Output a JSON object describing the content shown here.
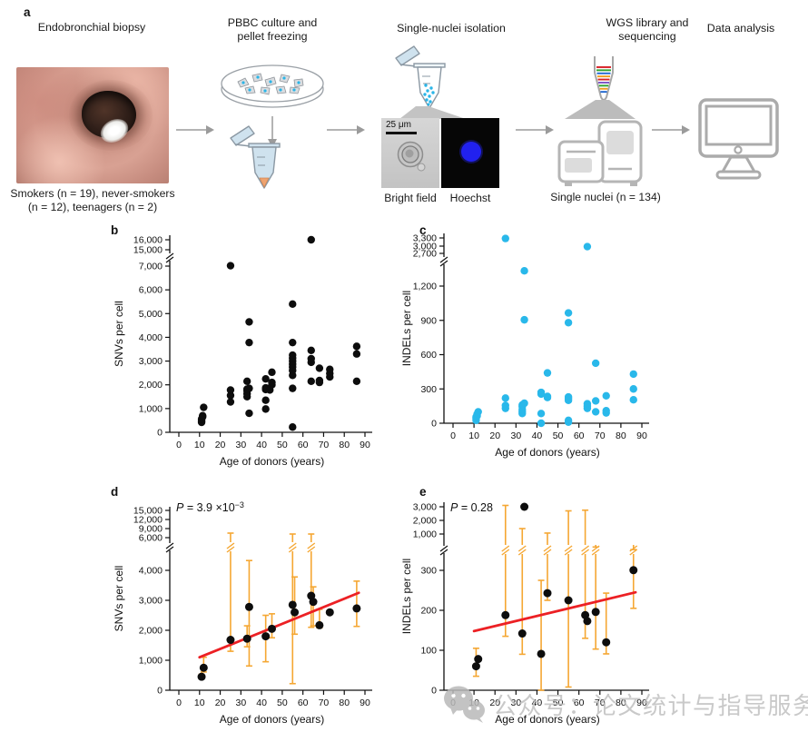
{
  "panel_a": {
    "label": "a",
    "biopsy": {
      "title": "Endobronchial biopsy",
      "caption_line1": "Smokers (n = 19), never-smokers",
      "caption_line2": "(n = 12), teenagers (n = 2)"
    },
    "culture": {
      "title_line1": "PBBC culture and",
      "title_line2": "pellet freezing"
    },
    "nuclei": {
      "title": "Single-nuclei isolation",
      "scale_bar": "25 μm",
      "brightfield_label": "Bright field",
      "hoechst_label": "Hoechst"
    },
    "wgs": {
      "title_line1": "WGS library and",
      "title_line2": "sequencing",
      "caption": "Single nuclei (n = 134)"
    },
    "analysis": {
      "title": "Data analysis"
    }
  },
  "colors": {
    "point_black": "#0d0d0d",
    "point_cyan": "#29B8EA",
    "errorbar_orange": "#F5A733",
    "fit_red": "#EC2024",
    "icon_gray": "#B5B5B5",
    "arrow_gray": "#9B9B9B",
    "tube_blue": "#CFE2EE",
    "nucleus_blue": "#2121EF",
    "watermark_gray": "#C0C0C0"
  },
  "chart_data": [
    {
      "id": "b",
      "panel_label": "b",
      "type": "scatter",
      "xlabel": "Age of donors (years)",
      "ylabel": "SNVs per cell",
      "x_ticks": [
        0,
        10,
        20,
        30,
        40,
        50,
        60,
        70,
        80,
        90
      ],
      "y_ticks_lower": [
        0,
        1000,
        2000,
        3000,
        4000,
        5000,
        6000,
        7000
      ],
      "y_ticks_upper": [
        15000,
        16000
      ],
      "axis_break": true,
      "point_color": "#0d0d0d",
      "points": [
        [
          11,
          420
        ],
        [
          11,
          480
        ],
        [
          11,
          560
        ],
        [
          11.5,
          650
        ],
        [
          11.5,
          700
        ],
        [
          12,
          1050
        ],
        [
          25,
          1280
        ],
        [
          25,
          1550
        ],
        [
          25,
          1780
        ],
        [
          25,
          7200
        ],
        [
          33,
          1500
        ],
        [
          33,
          1620
        ],
        [
          33,
          1750
        ],
        [
          33,
          1820
        ],
        [
          33,
          2150
        ],
        [
          34,
          800
        ],
        [
          34,
          1850
        ],
        [
          34,
          3780
        ],
        [
          34,
          4650
        ],
        [
          42,
          980
        ],
        [
          42,
          1350
        ],
        [
          42,
          1800
        ],
        [
          42,
          1870
        ],
        [
          42,
          2250
        ],
        [
          44,
          1780
        ],
        [
          45,
          2000
        ],
        [
          45,
          2100
        ],
        [
          45,
          2530
        ],
        [
          55,
          220
        ],
        [
          55,
          1850
        ],
        [
          55,
          2400
        ],
        [
          55,
          2600
        ],
        [
          55,
          2750
        ],
        [
          55,
          2870
        ],
        [
          55,
          3000
        ],
        [
          55,
          3120
        ],
        [
          55,
          3250
        ],
        [
          55,
          3780
        ],
        [
          55,
          5400
        ],
        [
          64,
          2150
        ],
        [
          64,
          2950
        ],
        [
          64,
          3100
        ],
        [
          64,
          3450
        ],
        [
          64,
          16000
        ],
        [
          68,
          2100
        ],
        [
          68,
          2180
        ],
        [
          68,
          2700
        ],
        [
          73,
          2330
        ],
        [
          73,
          2480
        ],
        [
          73,
          2650
        ],
        [
          86,
          2150
        ],
        [
          86,
          3300
        ],
        [
          86,
          3620
        ]
      ]
    },
    {
      "id": "c",
      "panel_label": "c",
      "type": "scatter",
      "xlabel": "Age of donors (years)",
      "ylabel": "INDELs per cell",
      "x_ticks": [
        0,
        10,
        20,
        30,
        40,
        50,
        60,
        70,
        80,
        90
      ],
      "y_ticks_lower": [
        0,
        300,
        600,
        900,
        1200
      ],
      "y_ticks_upper": [
        2700,
        3000,
        3300
      ],
      "axis_break": true,
      "point_color": "#29B8EA",
      "points": [
        [
          11,
          25
        ],
        [
          11,
          40
        ],
        [
          11,
          55
        ],
        [
          11.5,
          65
        ],
        [
          11.5,
          80
        ],
        [
          12,
          100
        ],
        [
          25,
          130
        ],
        [
          25,
          155
        ],
        [
          25,
          220
        ],
        [
          25,
          3280
        ],
        [
          33,
          85
        ],
        [
          33,
          100
        ],
        [
          33,
          120
        ],
        [
          33,
          145
        ],
        [
          33,
          160
        ],
        [
          34,
          175
        ],
        [
          34,
          905
        ],
        [
          34,
          1900
        ],
        [
          42,
          0
        ],
        [
          42,
          85
        ],
        [
          42,
          255
        ],
        [
          42,
          270
        ],
        [
          45,
          225
        ],
        [
          45,
          235
        ],
        [
          45,
          440
        ],
        [
          55,
          10
        ],
        [
          55,
          25
        ],
        [
          55,
          200
        ],
        [
          55,
          215
        ],
        [
          55,
          230
        ],
        [
          55,
          880
        ],
        [
          55,
          965
        ],
        [
          64,
          130
        ],
        [
          64,
          150
        ],
        [
          64,
          170
        ],
        [
          64,
          2980
        ],
        [
          68,
          100
        ],
        [
          68,
          195
        ],
        [
          68,
          525
        ],
        [
          73,
          90
        ],
        [
          73,
          110
        ],
        [
          73,
          240
        ],
        [
          86,
          205
        ],
        [
          86,
          300
        ],
        [
          86,
          430
        ]
      ]
    },
    {
      "id": "d",
      "panel_label": "d",
      "type": "scatter-errorbar",
      "xlabel": "Age of donors (years)",
      "ylabel": "SNVs per cell",
      "p_value": {
        "italic": "P",
        "rest": " = 3.9 ×10",
        "sup": "−3"
      },
      "x_ticks": [
        0,
        10,
        20,
        30,
        40,
        50,
        60,
        70,
        80,
        90
      ],
      "y_ticks_lower": [
        0,
        1000,
        2000,
        3000,
        4000
      ],
      "y_ticks_upper": [
        6000,
        9000,
        12000,
        15000
      ],
      "axis_break": true,
      "point_color": "#0d0d0d",
      "errorbar_color": "#F5A733",
      "fit_line": {
        "x1": 10,
        "y1": 1100,
        "x2": 87,
        "y2": 3250,
        "color": "#EC2024"
      },
      "points": [
        {
          "x": 11,
          "y": 450,
          "lo": 390,
          "hi": 530
        },
        {
          "x": 12,
          "y": 750,
          "lo": 610,
          "hi": 1100
        },
        {
          "x": 25,
          "y": 1680,
          "lo": 1300,
          "hi": 7500,
          "clip": true
        },
        {
          "x": 33,
          "y": 1720,
          "lo": 1450,
          "hi": 2150
        },
        {
          "x": 34,
          "y": 2780,
          "lo": 810,
          "hi": 4600
        },
        {
          "x": 42,
          "y": 1800,
          "lo": 950,
          "hi": 2500
        },
        {
          "x": 45,
          "y": 2050,
          "lo": 1750,
          "hi": 2550
        },
        {
          "x": 55,
          "y": 2850,
          "lo": 220,
          "hi": 7200,
          "clip": true
        },
        {
          "x": 56,
          "y": 2600,
          "lo": 1870,
          "hi": 3780
        },
        {
          "x": 64,
          "y": 3150,
          "lo": 2100,
          "hi": 7200,
          "clip": true
        },
        {
          "x": 65,
          "y": 2950,
          "lo": 2150,
          "hi": 3450
        },
        {
          "x": 68,
          "y": 2170,
          "lo": 2080,
          "hi": 2700
        },
        {
          "x": 73,
          "y": 2600
        },
        {
          "x": 86,
          "y": 2730,
          "lo": 2130,
          "hi": 3640
        }
      ]
    },
    {
      "id": "e",
      "panel_label": "e",
      "type": "scatter-errorbar",
      "xlabel": "Age of donors (years)",
      "ylabel": "INDELs per cell",
      "p_value": {
        "italic": "P",
        "rest": " = 0.28"
      },
      "x_ticks": [
        0,
        10,
        20,
        30,
        40,
        50,
        60,
        70,
        80,
        90
      ],
      "y_ticks_lower": [
        0,
        100,
        200,
        300
      ],
      "y_ticks_upper": [
        1000,
        2000,
        3000
      ],
      "axis_break": true,
      "point_color": "#0d0d0d",
      "errorbar_color": "#F5A733",
      "fit_line": {
        "x1": 10,
        "y1": 148,
        "x2": 87,
        "y2": 245,
        "color": "#EC2024"
      },
      "points": [
        {
          "x": 11,
          "y": 60,
          "lo": 35,
          "hi": 105
        },
        {
          "x": 12,
          "y": 78
        },
        {
          "x": 25,
          "y": 188,
          "lo": 135,
          "hi": 3100,
          "clip": true
        },
        {
          "x": 33,
          "y": 142,
          "lo": 90,
          "hi": 1400,
          "clip": true
        },
        {
          "x": 34,
          "y": 3000
        },
        {
          "x": 42,
          "y": 91,
          "lo": 0,
          "hi": 275
        },
        {
          "x": 45,
          "y": 243,
          "lo": 225,
          "hi": 1070,
          "clip": true
        },
        {
          "x": 55,
          "y": 225,
          "lo": 8,
          "hi": 2700,
          "clip": true
        },
        {
          "x": 63,
          "y": 188,
          "lo": 130,
          "hi": 2750,
          "clip": true
        },
        {
          "x": 64,
          "y": 173
        },
        {
          "x": 68,
          "y": 196,
          "lo": 103,
          "hi": 750,
          "clip": true
        },
        {
          "x": 73,
          "y": 120,
          "lo": 91,
          "hi": 243
        },
        {
          "x": 86,
          "y": 304,
          "lo": 205,
          "hi": 700,
          "clip": true
        }
      ]
    }
  ],
  "watermark": {
    "text": "公众号：论文统计与指导服务",
    "icon": "wechat-icon"
  }
}
